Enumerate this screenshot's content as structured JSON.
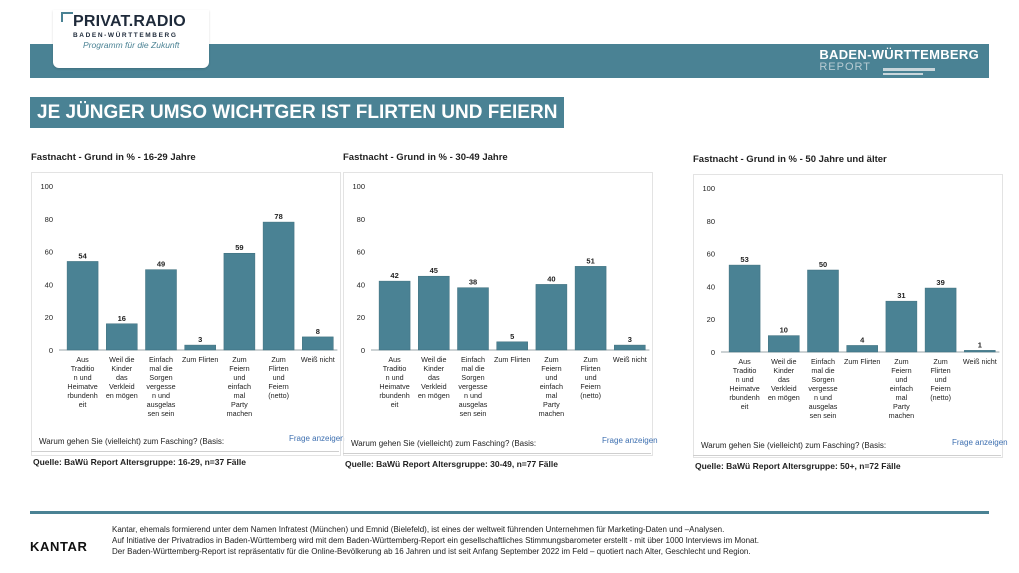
{
  "header": {
    "logo_main": "PRIVAT.RADIO",
    "logo_sub": "BADEN-WÜRTTEMBERG",
    "logo_tagline": "Programm für die Zukunft",
    "report_line1": "BADEN-WÜRTTEMBERG",
    "report_line2": "REPORT",
    "accent_color": "#4a8294"
  },
  "headline": "JE JÜNGER UMSO WICHTGER IST FLIRTEN UND FEIERN",
  "panels": [
    {
      "title": "Fastnacht - Grund in % - 16-29 Jahre",
      "question": "Warum gehen Sie (vielleicht) zum Fasching? (Basis:",
      "link": "Frage anzeigen",
      "source": "Quelle: BaWü Report Altersgruppe: 16-29, n=37 Fälle"
    },
    {
      "title": "Fastnacht - Grund in % - 30-49 Jahre",
      "question": "Warum gehen Sie (vielleicht) zum Fasching? (Basis:",
      "link": "Frage anzeigen",
      "source": "Quelle: BaWü Report Altersgruppe: 30-49, n=77 Fälle"
    },
    {
      "title": "Fastnacht - Grund in % - 50 Jahre und älter",
      "question": "Warum gehen Sie (vielleicht) zum Fasching? (Basis:",
      "link": "Frage anzeigen",
      "source": "Quelle: BaWü Report Altersgruppe: 50+, n=72 Fälle"
    }
  ],
  "chart_data": [
    {
      "type": "bar",
      "title": "Fastnacht - Grund in % - 16-29 Jahre",
      "categories": [
        [
          "Aus",
          "Traditio",
          "n und",
          "Heimatve",
          "rbundenh",
          "eit"
        ],
        [
          "Weil die",
          "Kinder",
          "das",
          "Verkleid",
          "en mögen"
        ],
        [
          "Einfach",
          "mal die",
          "Sorgen",
          "vergesse",
          "n und",
          "ausgelas",
          "sen sein"
        ],
        [
          "Zum Flirten"
        ],
        [
          "Zum",
          "Feiern",
          "und",
          "einfach",
          "mal",
          "Party",
          "machen"
        ],
        [
          "Zum",
          "Flirten",
          "und",
          "Feiern",
          "(netto)"
        ],
        [
          "Weiß nicht"
        ]
      ],
      "values": [
        54,
        16,
        49,
        3,
        59,
        78,
        8
      ],
      "yticks": [
        "0",
        "20",
        "40",
        "60",
        "80",
        "100"
      ],
      "ylim": [
        0,
        100
      ],
      "color": "#4a8294"
    },
    {
      "type": "bar",
      "title": "Fastnacht - Grund in % - 30-49 Jahre",
      "categories": [
        [
          "Aus",
          "Traditio",
          "n und",
          "Heimatve",
          "rbundenh",
          "eit"
        ],
        [
          "Weil die",
          "Kinder",
          "das",
          "Verkleid",
          "en mögen"
        ],
        [
          "Einfach",
          "mal die",
          "Sorgen",
          "vergesse",
          "n und",
          "ausgelas",
          "sen sein"
        ],
        [
          "Zum Flirten"
        ],
        [
          "Zum",
          "Feiern",
          "und",
          "einfach",
          "mal",
          "Party",
          "machen"
        ],
        [
          "Zum",
          "Flirten",
          "und",
          "Feiern",
          "(netto)"
        ],
        [
          "Weiß nicht"
        ]
      ],
      "values": [
        42,
        45,
        38,
        5,
        40,
        51,
        3
      ],
      "yticks": [
        "0",
        "20",
        "40",
        "60",
        "80",
        "100"
      ],
      "ylim": [
        0,
        100
      ],
      "color": "#4a8294"
    },
    {
      "type": "bar",
      "title": "Fastnacht - Grund in % - 50 Jahre und älter",
      "categories": [
        [
          "Aus",
          "Traditio",
          "n und",
          "Heimatve",
          "rbundenh",
          "eit"
        ],
        [
          "Weil die",
          "Kinder",
          "das",
          "Verkleid",
          "en mögen"
        ],
        [
          "Einfach",
          "mal die",
          "Sorgen",
          "vergesse",
          "n und",
          "ausgelas",
          "sen sein"
        ],
        [
          "Zum Flirten"
        ],
        [
          "Zum",
          "Feiern",
          "und",
          "einfach",
          "mal",
          "Party",
          "machen"
        ],
        [
          "Zum",
          "Flirten",
          "und",
          "Feiern",
          "(netto)"
        ],
        [
          "Weiß nicht"
        ]
      ],
      "values": [
        53,
        10,
        50,
        4,
        31,
        39,
        1
      ],
      "yticks": [
        "0",
        "20",
        "40",
        "60",
        "80",
        "100"
      ],
      "ylim": [
        0,
        100
      ],
      "color": "#4a8294"
    }
  ],
  "footer": {
    "brand": "KANTAR",
    "line1": "Kantar, ehemals formierend unter dem Namen Infratest (München) und Emnid (Bielefeld), ist eines der weltweit führenden Unternehmen für Marketing-Daten und –Analysen.",
    "line2": "Auf Initiative der Privatradios in Baden-Württemberg wird mit dem Baden-Württemberg-Report ein gesellschaftliches Stimmungsbarometer erstellt - mit über 1000 Interviews im Monat.",
    "line3": "Der Baden-Württemberg-Report ist repräsentativ für die Online-Bevölkerung ab 16 Jahren und ist seit Anfang September 2022 im Feld – quotiert nach Alter, Geschlecht und Region."
  }
}
